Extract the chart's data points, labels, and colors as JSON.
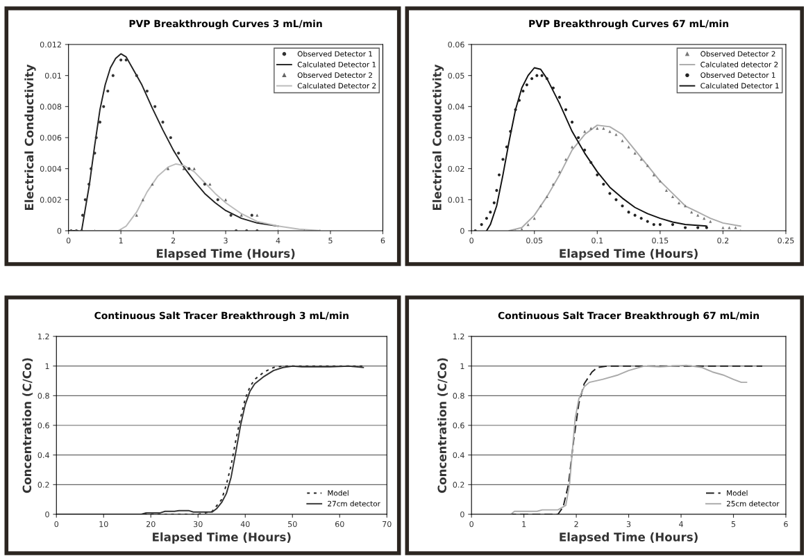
{
  "chart_data": [
    {
      "type": "line",
      "title": "PVP Breakthrough Curves 3 mL/min",
      "xlabel": "Elapsed Time (Hours)",
      "ylabel": "Electrical Conductivity",
      "xlim": [
        0,
        6
      ],
      "xticks": [
        0,
        1,
        2,
        3,
        4,
        5,
        6
      ],
      "ylim": [
        0,
        0.012
      ],
      "yticks": [
        0,
        0.002,
        0.004,
        0.006,
        0.008,
        0.01,
        0.012
      ],
      "grid": false,
      "legend": "top right",
      "series": [
        {
          "name": "Observed Detector 1",
          "type": "scatter",
          "marker": "circle",
          "color": "#333333",
          "x": [
            0.05,
            0.15,
            0.25,
            0.27,
            0.32,
            0.39,
            0.43,
            0.5,
            0.53,
            0.6,
            0.67,
            0.75,
            0.85,
            1.0,
            1.1,
            1.3,
            1.5,
            1.65,
            1.8,
            1.95,
            2.1,
            2.3,
            2.6,
            2.85,
            3.1,
            3.3,
            3.5,
            3.2,
            3.4,
            3.6
          ],
          "values": [
            0,
            0,
            0,
            0.001,
            0.002,
            0.003,
            0.004,
            0.005,
            0.006,
            0.007,
            0.008,
            0.009,
            0.01,
            0.011,
            0.011,
            0.01,
            0.009,
            0.008,
            0.007,
            0.006,
            0.005,
            0.004,
            0.003,
            0.002,
            0.001,
            null,
            0.001,
            0,
            0,
            0
          ]
        },
        {
          "name": "Calculated Detector 1",
          "type": "line",
          "marker": "none",
          "line_style": "solid",
          "color": "#222222",
          "x": [
            0,
            0.25,
            0.3,
            0.4,
            0.5,
            0.6,
            0.7,
            0.8,
            0.9,
            1.0,
            1.1,
            1.2,
            1.4,
            1.6,
            1.8,
            2.0,
            2.2,
            2.4,
            2.6,
            2.8,
            3.0,
            3.3,
            3.6,
            4.0
          ],
          "values": [
            0,
            0,
            0.001,
            0.003,
            0.0055,
            0.0078,
            0.0094,
            0.0105,
            0.0111,
            0.0114,
            0.0112,
            0.0106,
            0.0094,
            0.0079,
            0.0065,
            0.0052,
            0.0041,
            0.0032,
            0.0024,
            0.0018,
            0.0013,
            0.0008,
            0.0005,
            0.0003
          ]
        },
        {
          "name": "Observed Detector 2",
          "type": "scatter",
          "marker": "triangle",
          "color": "#666666",
          "x": [
            0.5,
            1.0,
            1.3,
            1.42,
            1.6,
            1.9,
            2.2,
            2.4,
            2.7,
            3.0,
            3.3,
            3.6,
            4.0,
            4.5,
            4.8
          ],
          "values": [
            0,
            0,
            0.001,
            0.002,
            0.003,
            0.004,
            0.004,
            0.004,
            0.003,
            0.002,
            0.001,
            0.001,
            0,
            0,
            0
          ]
        },
        {
          "name": "Calculated Detector 2",
          "type": "line",
          "marker": "none",
          "line_style": "solid",
          "color": "#bbbbbb",
          "x": [
            0.2,
            0.95,
            1.1,
            1.3,
            1.5,
            1.7,
            1.9,
            2.05,
            2.2,
            2.4,
            2.6,
            2.8,
            3.0,
            3.3,
            3.6,
            4.0,
            4.4,
            4.8
          ],
          "values": [
            0,
            0,
            0.0003,
            0.0012,
            0.0025,
            0.0035,
            0.0041,
            0.0043,
            0.0042,
            0.0038,
            0.0031,
            0.0024,
            0.0018,
            0.0011,
            0.0006,
            0.0003,
            0.0001,
            0
          ]
        }
      ]
    },
    {
      "type": "line",
      "title": "PVP Breakthrough Curves 67 mL/min",
      "xlabel": "Elapsed Time (Hours)",
      "ylabel": "Electrical Conductivity",
      "xlim": [
        0,
        0.25
      ],
      "xticks": [
        0,
        0.05,
        0.1,
        0.15,
        0.2,
        0.25
      ],
      "ylim": [
        0,
        0.06
      ],
      "yticks": [
        0,
        0.01,
        0.02,
        0.03,
        0.04,
        0.05,
        0.06
      ],
      "grid": false,
      "legend": "top right",
      "series": [
        {
          "name": "Observed Detector 2",
          "type": "scatter",
          "marker": "triangle",
          "color": "#777777",
          "x": [
            0.035,
            0.04,
            0.045,
            0.05,
            0.055,
            0.06,
            0.065,
            0.07,
            0.075,
            0.08,
            0.085,
            0.09,
            0.095,
            0.1,
            0.105,
            0.11,
            0.115,
            0.12,
            0.125,
            0.13,
            0.135,
            0.14,
            0.145,
            0.15,
            0.155,
            0.16,
            0.165,
            0.17,
            0.175,
            0.18,
            0.185,
            0.19,
            0.2,
            0.205,
            0.21,
            0.214
          ],
          "values": [
            0,
            0.0005,
            0.002,
            0.004,
            0.008,
            0.011,
            0.015,
            0.019,
            0.023,
            0.027,
            null,
            0.032,
            0.033,
            0.033,
            0.033,
            0.032,
            0.031,
            0.029,
            0.027,
            0.025,
            0.023,
            0.021,
            0.018,
            0.016,
            0.013,
            0.011,
            0.009,
            0.008,
            0.006,
            0.005,
            0.004,
            0.003,
            0.001,
            0.001,
            0.001,
            0
          ]
        },
        {
          "name": "Calculated detector 2",
          "type": "line",
          "marker": "none",
          "line_style": "solid",
          "color": "#aaaaaa",
          "x": [
            0.03,
            0.04,
            0.05,
            0.06,
            0.07,
            0.08,
            0.09,
            0.1,
            0.11,
            0.12,
            0.13,
            0.14,
            0.15,
            0.16,
            0.17,
            0.18,
            0.19,
            0.2,
            0.214
          ],
          "values": [
            0,
            0.001,
            0.005,
            0.011,
            0.018,
            0.026,
            0.031,
            0.034,
            0.0335,
            0.031,
            0.026,
            0.021,
            0.016,
            0.012,
            0.008,
            0.006,
            0.004,
            0.0025,
            0.0015
          ]
        },
        {
          "name": "Observed Detector 1",
          "type": "scatter",
          "marker": "circle",
          "color": "#222222",
          "x": [
            0.003,
            0.008,
            0.012,
            0.015,
            0.018,
            0.02,
            0.022,
            0.025,
            0.028,
            0.031,
            0.035,
            0.038,
            0.041,
            0.044,
            0.048,
            0.052,
            0.056,
            0.06,
            0.065,
            0.07,
            0.075,
            0.08,
            0.085,
            0.09,
            0.095,
            0.1,
            0.105,
            0.11,
            0.115,
            0.12,
            0.125,
            0.13,
            0.135,
            0.14,
            0.145,
            0.15,
            0.16,
            0.17,
            0.18,
            0.187
          ],
          "values": [
            0,
            0.002,
            0.004,
            0.006,
            0.009,
            0.013,
            0.018,
            0.023,
            0.027,
            0.032,
            0.039,
            0.042,
            0.045,
            0.047,
            0.049,
            0.05,
            0.05,
            0.049,
            0.046,
            0.043,
            0.039,
            0.035,
            0.03,
            0.026,
            0.022,
            0.018,
            0.015,
            0.012,
            0.01,
            0.008,
            0.006,
            0.005,
            0.004,
            0.003,
            0.002,
            0.002,
            0.002,
            0.001,
            0.001,
            0.001
          ]
        },
        {
          "name": "Calculated Detector 1",
          "type": "line",
          "marker": "none",
          "line_style": "solid",
          "color": "#111111",
          "x": [
            0.012,
            0.015,
            0.02,
            0.025,
            0.03,
            0.035,
            0.04,
            0.045,
            0.05,
            0.055,
            0.06,
            0.07,
            0.08,
            0.09,
            0.1,
            0.11,
            0.12,
            0.13,
            0.14,
            0.15,
            0.16,
            0.17,
            0.187
          ],
          "values": [
            0,
            0.002,
            0.008,
            0.018,
            0.029,
            0.039,
            0.046,
            0.05,
            0.0525,
            0.052,
            0.049,
            0.041,
            0.032,
            0.025,
            0.019,
            0.014,
            0.0105,
            0.0075,
            0.0055,
            0.004,
            0.0028,
            0.002,
            0.0015
          ]
        }
      ]
    },
    {
      "type": "line",
      "title": "Continuous Salt Tracer Breakthrough 3 mL/min",
      "xlabel": "Elapsed Time (Hours)",
      "ylabel": "Concentration (C/Co)",
      "xlim": [
        0,
        70
      ],
      "xticks": [
        0,
        10,
        20,
        30,
        40,
        50,
        60,
        70
      ],
      "ylim": [
        0,
        1.2
      ],
      "yticks": [
        0,
        0.2,
        0.4,
        0.6,
        0.8,
        1,
        1.2
      ],
      "grid": "y",
      "legend": "bottom right",
      "series": [
        {
          "name": "Model",
          "type": "line",
          "marker": "none",
          "line_style": "dotted",
          "color": "#222222",
          "x": [
            0,
            30,
            33,
            35,
            36,
            37,
            38,
            39,
            40,
            41,
            42,
            44,
            46,
            48,
            65
          ],
          "values": [
            0,
            0,
            0.02,
            0.1,
            0.2,
            0.33,
            0.5,
            0.65,
            0.78,
            0.86,
            0.91,
            0.96,
            0.99,
            1.0,
            1.0
          ]
        },
        {
          "name": "27cm detector",
          "type": "line",
          "marker": "none",
          "line_style": "solid",
          "color": "#333333",
          "x": [
            0,
            18,
            19,
            22,
            23,
            25,
            26,
            28,
            29,
            33,
            34,
            35,
            36,
            37,
            38,
            39,
            40,
            41,
            42,
            44,
            46,
            48,
            50,
            52,
            58,
            62,
            65
          ],
          "values": [
            0,
            0,
            0.01,
            0.01,
            0.02,
            0.02,
            0.025,
            0.025,
            0.015,
            0.015,
            0.04,
            0.08,
            0.14,
            0.25,
            0.42,
            0.6,
            0.74,
            0.83,
            0.88,
            0.93,
            0.97,
            0.99,
            1.0,
            0.995,
            0.995,
            1.0,
            0.99
          ]
        }
      ]
    },
    {
      "type": "line",
      "title": "Continuous Salt Tracer Breakthrough 67 mL/min",
      "xlabel": "Elapsed Time (Hours)",
      "ylabel": "Concentration (C/Co)",
      "xlim": [
        0,
        6
      ],
      "xticks": [
        0,
        1,
        2,
        3,
        4,
        5,
        6
      ],
      "ylim": [
        0,
        1.2
      ],
      "yticks": [
        0,
        0.2,
        0.4,
        0.6,
        0.8,
        1,
        1.2
      ],
      "grid": "y",
      "legend": "bottom right",
      "series": [
        {
          "name": "Model",
          "type": "line",
          "marker": "none",
          "line_style": "dashed",
          "color": "#222222",
          "x": [
            0,
            1.65,
            1.75,
            1.85,
            1.95,
            2.05,
            2.15,
            2.3,
            2.4,
            2.6,
            5.55
          ],
          "values": [
            0,
            0,
            0.05,
            0.2,
            0.5,
            0.75,
            0.88,
            0.96,
            0.99,
            1.0,
            1.0
          ]
        },
        {
          "name": "25cm detector",
          "type": "line",
          "marker": "none",
          "line_style": "solid",
          "color": "#aaaaaa",
          "x": [
            0,
            0.75,
            0.82,
            1.25,
            1.35,
            1.65,
            1.8,
            1.87,
            1.93,
            1.98,
            2.05,
            2.15,
            2.25,
            2.5,
            2.8,
            3.0,
            3.3,
            3.6,
            4.1,
            4.4,
            4.6,
            4.8,
            5.0,
            5.15,
            5.25
          ],
          "values": [
            0,
            0,
            0.02,
            0.02,
            0.03,
            0.03,
            0.06,
            0.2,
            0.45,
            0.65,
            0.78,
            0.86,
            0.89,
            0.91,
            0.94,
            0.97,
            1.0,
            0.995,
            1.005,
            0.99,
            0.96,
            0.94,
            0.91,
            0.89,
            0.89
          ]
        }
      ]
    }
  ]
}
